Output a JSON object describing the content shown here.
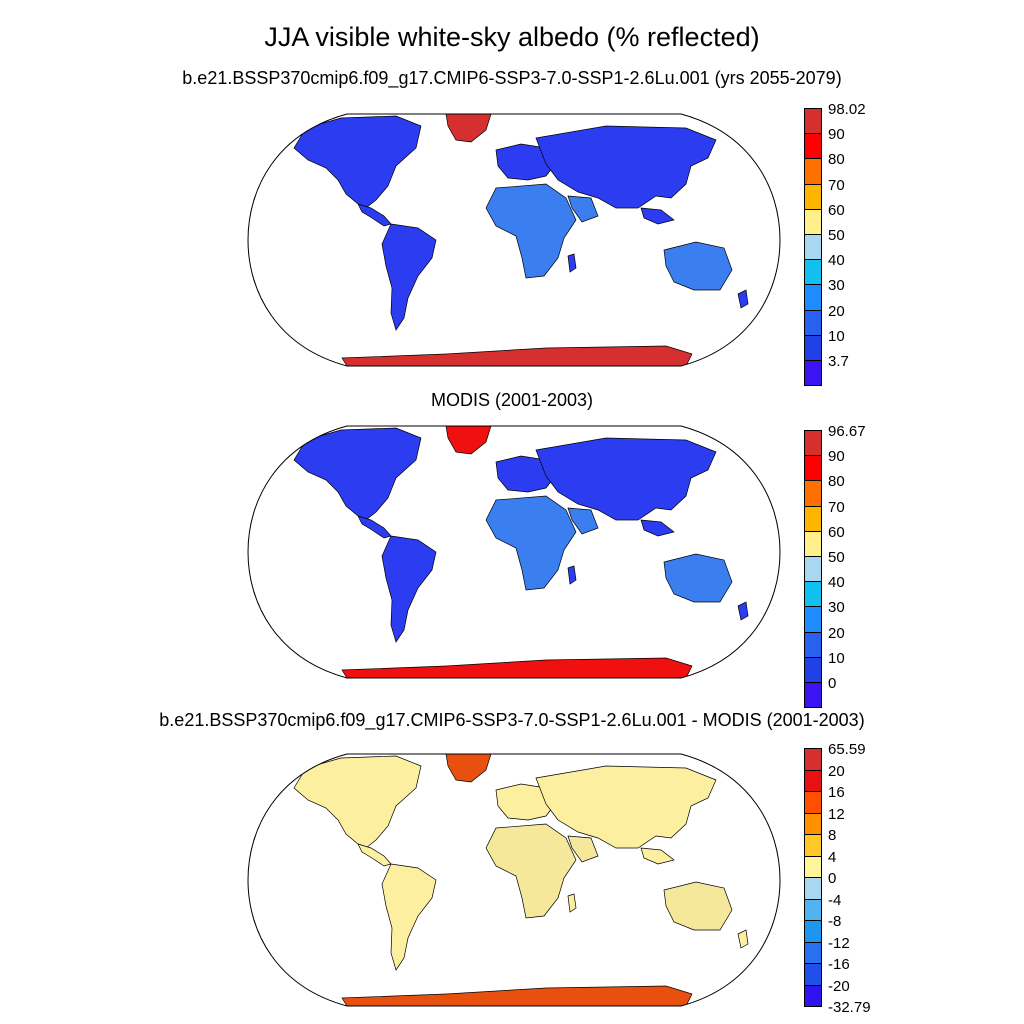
{
  "title": "JJA visible white-sky albedo (% reflected)",
  "panels": [
    {
      "name": "model",
      "title": "b.e21.BSSP370cmip6.f09_g17.CMIP6-SSP3-7.0-SSP1-2.6Lu.001 (yrs 2055-2079)",
      "colorbar": {
        "labels": [
          "98.02",
          "90",
          "80",
          "70",
          "60",
          "50",
          "40",
          "30",
          "20",
          "10",
          "3.7"
        ],
        "colors": [
          "#d62f2f",
          "#ff0000",
          "#ff7000",
          "#ffb400",
          "#fff08c",
          "#a8d8f0",
          "#12c0f0",
          "#1e8cff",
          "#2860f0",
          "#2040e8",
          "#3c14f0"
        ]
      },
      "fills": {
        "land": "#2c3cf0",
        "desert": "#3a7ef0",
        "ice": "#d62f2f"
      }
    },
    {
      "name": "obs",
      "title": "MODIS (2001-2003)",
      "colorbar": {
        "labels": [
          "96.67",
          "90",
          "80",
          "70",
          "60",
          "50",
          "40",
          "30",
          "20",
          "10",
          "0"
        ],
        "colors": [
          "#d62f2f",
          "#ff0000",
          "#ff7000",
          "#ffb400",
          "#fff08c",
          "#a8d8f0",
          "#12c0f0",
          "#1e8cff",
          "#2860f0",
          "#2040e8",
          "#3c14f0"
        ]
      },
      "fills": {
        "land": "#2c3cf0",
        "desert": "#3a7ef0",
        "ice": "#f01010"
      }
    },
    {
      "name": "diff",
      "title": "b.e21.BSSP370cmip6.f09_g17.CMIP6-SSP3-7.0-SSP1-2.6Lu.001 - MODIS (2001-2003)",
      "colorbar": {
        "labels": [
          "65.59",
          "20",
          "16",
          "12",
          "8",
          "4",
          "0",
          "-4",
          "-8",
          "-12",
          "-16",
          "-20",
          "-32.79"
        ],
        "colors": [
          "#d62f2f",
          "#e81010",
          "#ff5000",
          "#ff9000",
          "#ffc828",
          "#fff59a",
          "#a8d8f0",
          "#50b4f0",
          "#1e96f0",
          "#2870f0",
          "#2050e8",
          "#3014f0"
        ]
      },
      "fills": {
        "land": "#fcefa0",
        "desert": "#f5e89a",
        "ice": "#e85010"
      }
    }
  ]
}
